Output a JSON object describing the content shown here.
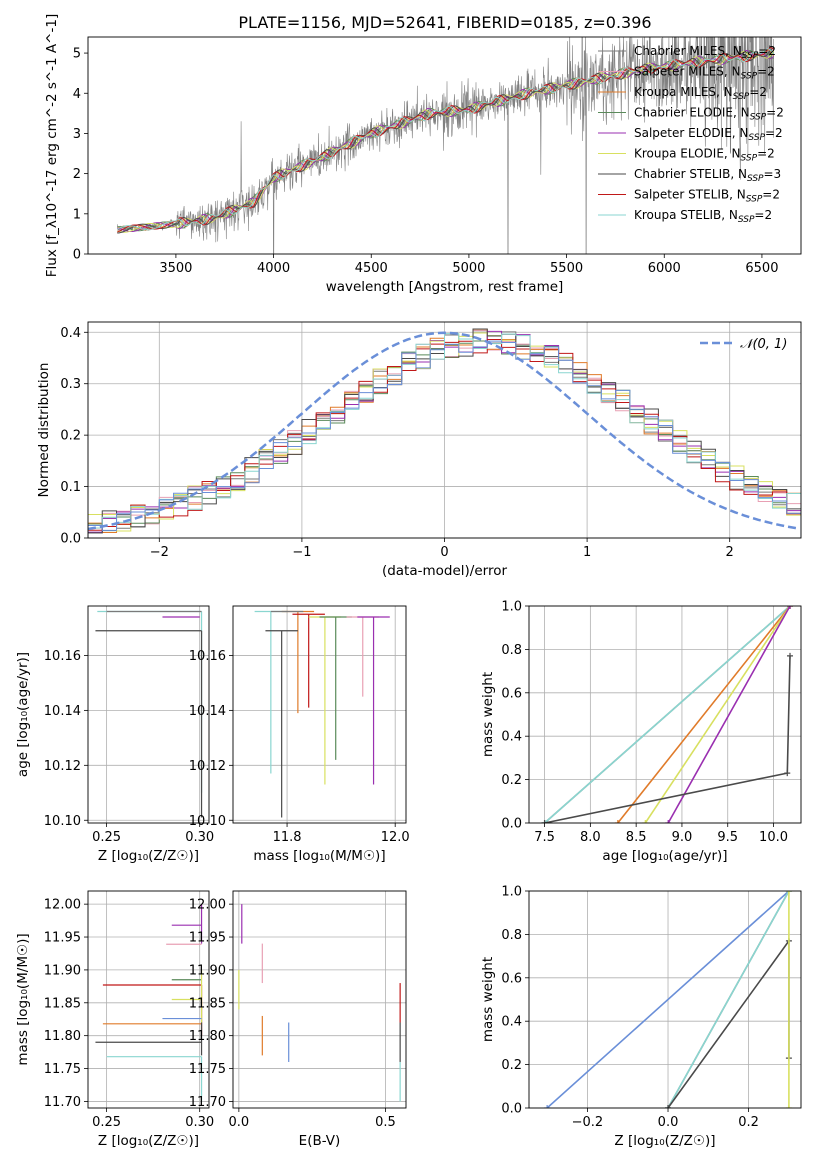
{
  "figure": {
    "title": "PLATE=1156, MJD=52641, FIBERID=0185, z=0.396"
  },
  "colors": {
    "chabrier_miles": "#7a7a7a",
    "salpeter_miles": "#e8a0b4",
    "kroupa_miles": "#e07b2a",
    "chabrier_elodie": "#5a8a5a",
    "salpeter_elodie": "#9a2fb0",
    "kroupa_elodie": "#d8e060",
    "chabrier_stelib": "#4a4a4a",
    "salpeter_stelib": "#c01818",
    "kroupa_stelib": "#8ad6d0",
    "normal": "#6a8fd8",
    "data": "#808080"
  },
  "chart_data": [
    {
      "id": "spectrum",
      "type": "line",
      "title": "PLATE=1156, MJD=52641, FIBERID=0185, z=0.396",
      "xlabel": "wavelength [Angstrom, rest frame]",
      "ylabel": "Flux [f_λ10^-17 erg cm^-2 s^-1 A^-1]",
      "xlim": [
        3050,
        6700
      ],
      "ylim": [
        0,
        5.4
      ],
      "xticks": [
        "3500",
        "4000",
        "4500",
        "5000",
        "5500",
        "6000",
        "6500"
      ],
      "yticks": [
        "0",
        "1",
        "2",
        "3",
        "4",
        "5"
      ],
      "grid": false,
      "legend_position": "top-right",
      "legend": [
        {
          "name": "Chabrier MILES, N",
          "sub": "SSP",
          "suffix": "=2",
          "color": "#7a7a7a"
        },
        {
          "name": "Salpeter MILES, N",
          "sub": "SSP",
          "suffix": "=2",
          "color": "#e8a0b4"
        },
        {
          "name": "Kroupa MILES, N",
          "sub": "SSP",
          "suffix": "=2",
          "color": "#e07b2a"
        },
        {
          "name": "Chabrier ELODIE, N",
          "sub": "SSP",
          "suffix": "=2",
          "color": "#5a8a5a"
        },
        {
          "name": "Salpeter ELODIE, N",
          "sub": "SSP",
          "suffix": "=2",
          "color": "#9a2fb0"
        },
        {
          "name": "Kroupa ELODIE, N",
          "sub": "SSP",
          "suffix": "=2",
          "color": "#d8e060"
        },
        {
          "name": "Chabrier STELIB, N",
          "sub": "SSP",
          "suffix": "=3",
          "color": "#4a4a4a"
        },
        {
          "name": "Salpeter STELIB, N",
          "sub": "SSP",
          "suffix": "=2",
          "color": "#c01818"
        },
        {
          "name": "Kroupa STELIB, N",
          "sub": "SSP",
          "suffix": "=2",
          "color": "#8ad6d0"
        }
      ],
      "model_anchor_points": [
        [
          3200,
          0.6
        ],
        [
          3500,
          0.75
        ],
        [
          3700,
          0.9
        ],
        [
          3900,
          1.3
        ],
        [
          4000,
          1.9
        ],
        [
          4200,
          2.3
        ],
        [
          4500,
          3.0
        ],
        [
          4800,
          3.5
        ],
        [
          5000,
          3.6
        ],
        [
          5300,
          4.0
        ],
        [
          5600,
          4.3
        ],
        [
          5900,
          4.6
        ],
        [
          6200,
          4.8
        ],
        [
          6550,
          5.0
        ]
      ],
      "data_note": "observed spectrum shown in grey with high-frequency noise; models overlaid"
    },
    {
      "id": "residuals",
      "type": "line",
      "xlabel": "(data-model)/error",
      "ylabel": "Normed distribution",
      "xlim": [
        -2.5,
        2.5
      ],
      "ylim": [
        0,
        0.42
      ],
      "xticks": [
        "−2",
        "−1",
        "0",
        "1",
        "2"
      ],
      "yticks": [
        "0.0",
        "0.1",
        "0.2",
        "0.3",
        "0.4"
      ],
      "grid": true,
      "legend_position": "top-right",
      "legend": [
        {
          "name": "𝒩(0, 1)",
          "color": "#6a8fd8",
          "style": "dashed"
        }
      ],
      "normal": {
        "mean": 0,
        "sigma": 1
      },
      "histogram_bins": [
        -2.5,
        2.5,
        50
      ],
      "histogram_centre_shift": 0.3,
      "histogram_sigma": 1.1
    },
    {
      "id": "age_vs_Z",
      "type": "scatter",
      "xlabel": "Z [log₁₀(Z/Z☉)]",
      "ylabel": "age  [log₁₀(age/yr)]",
      "xlim": [
        0.24,
        0.305
      ],
      "ylim": [
        10.099,
        10.178
      ],
      "xticks": [
        "0.25",
        "0.30"
      ],
      "yticks": [
        "10.10",
        "10.12",
        "10.14",
        "10.16"
      ],
      "grid": true
    },
    {
      "id": "age_vs_mass",
      "type": "scatter",
      "xlabel": "mass [log₁₀(M/M☉)]",
      "ylabel": "",
      "xlim": [
        11.7,
        12.02
      ],
      "ylim": [
        10.099,
        10.178
      ],
      "xticks": [
        "11.8",
        "12.0"
      ],
      "yticks": [
        "10.10",
        "10.12",
        "10.14",
        "10.16"
      ],
      "grid": true,
      "points": [
        {
          "x": 11.77,
          "y": 10.176,
          "color": "#8ad6d0"
        },
        {
          "x": 11.82,
          "y": 10.176,
          "color": "#e07b2a"
        },
        {
          "x": 11.84,
          "y": 10.175,
          "color": "#c01818"
        },
        {
          "x": 11.87,
          "y": 10.174,
          "color": "#d8e060"
        },
        {
          "x": 11.89,
          "y": 10.174,
          "color": "#5a8a5a"
        },
        {
          "x": 11.94,
          "y": 10.174,
          "color": "#e8a0b4"
        },
        {
          "x": 11.96,
          "y": 10.174,
          "color": "#9a2fb0"
        },
        {
          "x": 11.79,
          "y": 10.169,
          "color": "#4a4a4a"
        },
        {
          "x": 11.8,
          "y": 10.176,
          "color": "#7a7a7a"
        }
      ]
    },
    {
      "id": "massweight_vs_age",
      "type": "line",
      "xlabel": "age  [log₁₀(age/yr)]",
      "ylabel": "mass weight",
      "xlim": [
        7.33,
        10.3
      ],
      "ylim": [
        0,
        1
      ],
      "xticks": [
        "7.5",
        "8.0",
        "8.5",
        "9.0",
        "9.5",
        "10.0"
      ],
      "yticks": [
        "0.0",
        "0.2",
        "0.4",
        "0.6",
        "0.8",
        "1.0"
      ],
      "grid": true,
      "lines": [
        {
          "color": "#7a7a7a",
          "x": [
            7.5,
            10.18
          ],
          "y": [
            0,
            1
          ]
        },
        {
          "color": "#8ad6d0",
          "x": [
            7.5,
            10.18
          ],
          "y": [
            0,
            1
          ]
        },
        {
          "color": "#e07b2a",
          "x": [
            8.3,
            10.18
          ],
          "y": [
            0,
            1
          ]
        },
        {
          "color": "#d8e060",
          "x": [
            8.6,
            10.18
          ],
          "y": [
            0,
            1
          ]
        },
        {
          "color": "#9a2fb0",
          "x": [
            8.85,
            10.18
          ],
          "y": [
            0,
            1
          ]
        },
        {
          "color": "#4a4a4a",
          "x": [
            7.5,
            10.15,
            10.18
          ],
          "y": [
            0,
            0.23,
            0.77
          ]
        }
      ]
    },
    {
      "id": "mass_vs_Z",
      "type": "scatter",
      "xlabel": "Z [log₁₀(Z/Z☉)]",
      "ylabel": "mass [log₁₀(M/M☉)]",
      "xlim": [
        0.24,
        0.305
      ],
      "ylim": [
        11.69,
        12.02
      ],
      "xticks": [
        "0.25",
        "0.30"
      ],
      "yticks": [
        "11.70",
        "11.75",
        "11.80",
        "11.85",
        "11.90",
        "11.95",
        "12.00"
      ],
      "grid": true
    },
    {
      "id": "mass_vs_ebv",
      "type": "scatter",
      "xlabel": "E(B-V)",
      "ylabel": "",
      "xlim": [
        -0.02,
        0.57
      ],
      "ylim": [
        11.69,
        12.02
      ],
      "xticks": [
        "0.0",
        "0.5"
      ],
      "yticks": [
        "11.70",
        "11.75",
        "11.80",
        "11.85",
        "11.90",
        "11.95",
        "12.00"
      ],
      "grid": true,
      "points": [
        {
          "x": 0.01,
          "y": 11.97,
          "color": "#9a2fb0"
        },
        {
          "x": 0.08,
          "y": 11.91,
          "color": "#e8a0b4"
        },
        {
          "x": 0.08,
          "y": 11.8,
          "color": "#e07b2a"
        },
        {
          "x": 0.17,
          "y": 11.79,
          "color": "#6a8fd8"
        },
        {
          "x": 0.0,
          "y": 11.87,
          "color": "#d8e060"
        },
        {
          "x": 0.55,
          "y": 11.85,
          "color": "#c01818"
        },
        {
          "x": 0.55,
          "y": 11.79,
          "color": "#4a4a4a"
        },
        {
          "x": 0.55,
          "y": 11.73,
          "color": "#8ad6d0"
        }
      ]
    },
    {
      "id": "massweight_vs_Z",
      "type": "line",
      "xlabel": "Z [log₁₀(Z/Z☉)]",
      "ylabel": "mass weight",
      "xlim": [
        -0.345,
        0.33
      ],
      "ylim": [
        0,
        1
      ],
      "xticks": [
        "−0.2",
        "0.0",
        "0.2"
      ],
      "yticks": [
        "0.0",
        "0.2",
        "0.4",
        "0.6",
        "0.8",
        "1.0"
      ],
      "grid": true,
      "lines": [
        {
          "color": "#6a8fd8",
          "x": [
            -0.3,
            0.3
          ],
          "y": [
            0,
            1
          ]
        },
        {
          "color": "#7a7a7a",
          "x": [
            0.0,
            0.3
          ],
          "y": [
            0,
            1
          ]
        },
        {
          "color": "#8ad6d0",
          "x": [
            0.0,
            0.3
          ],
          "y": [
            0,
            1
          ]
        },
        {
          "color": "#4a4a4a",
          "x": [
            0.0,
            0.3,
            0.3
          ],
          "y": [
            0,
            0.77,
            0.23
          ]
        },
        {
          "color": "#d8e060",
          "x": [
            0.3,
            0.3
          ],
          "y": [
            0,
            1
          ]
        }
      ]
    }
  ]
}
